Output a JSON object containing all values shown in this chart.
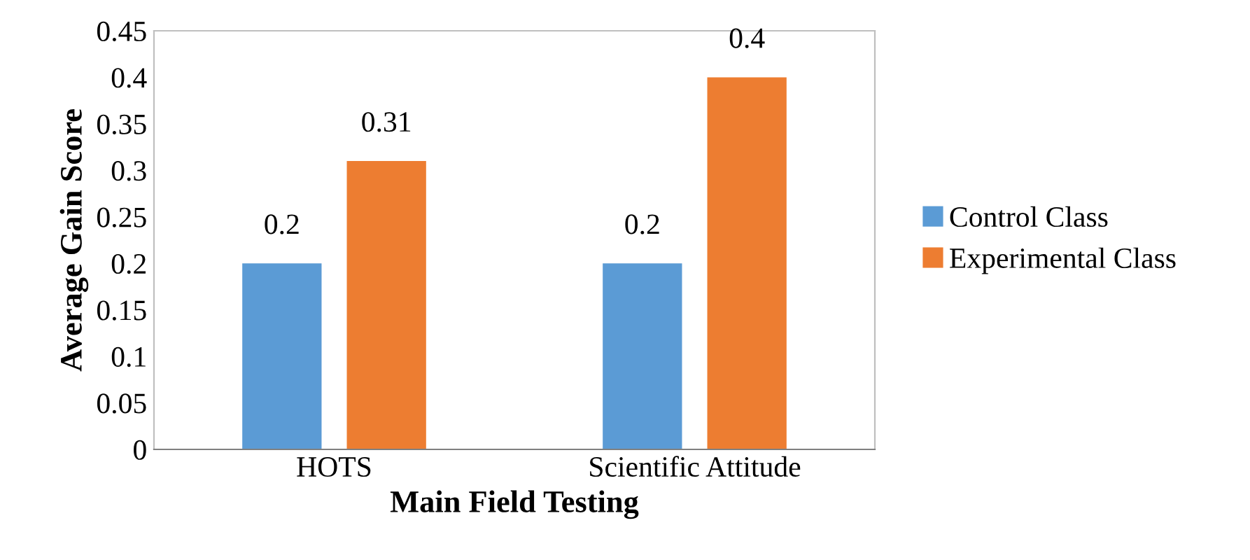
{
  "chart_data": {
    "type": "bar",
    "xlabel": "Main Field Testing",
    "ylabel": "Average Gain Score",
    "categories": [
      "HOTS",
      "Scientific Attitude"
    ],
    "series": [
      {
        "name": "Control Class",
        "color": "#5b9bd5",
        "values": [
          0.2,
          0.2
        ]
      },
      {
        "name": "Experimental Class",
        "color": "#ed7d31",
        "values": [
          0.31,
          0.4
        ]
      }
    ],
    "ylim": [
      0,
      0.45
    ],
    "yticks": [
      0,
      0.05,
      0.1,
      0.15,
      0.2,
      0.25,
      0.3,
      0.35,
      0.4,
      0.45
    ],
    "grid": false,
    "legend": "right",
    "data_labels": true
  }
}
